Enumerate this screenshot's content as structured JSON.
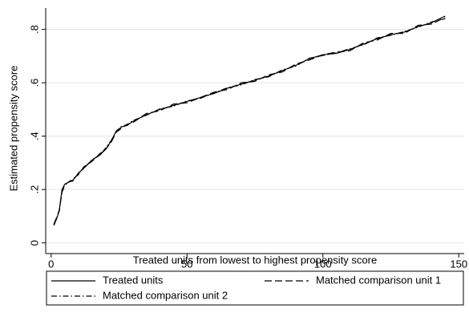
{
  "chart_data": {
    "type": "line",
    "x_label": "Treated units from lowest to highest propensity score",
    "y_label": "Estimated propensity score",
    "x": [
      1,
      2,
      3,
      4,
      5,
      6,
      8,
      10,
      12,
      15,
      18,
      20,
      22,
      24,
      26,
      28,
      30,
      35,
      40,
      45,
      50,
      55,
      60,
      65,
      70,
      75,
      80,
      85,
      90,
      95,
      100,
      105,
      110,
      115,
      120,
      125,
      130,
      135,
      140,
      145
    ],
    "series": [
      {
        "name": "Treated units",
        "color": "#000000",
        "style": "solid",
        "values": [
          0.065,
          0.09,
          0.12,
          0.2,
          0.22,
          0.225,
          0.235,
          0.26,
          0.28,
          0.31,
          0.33,
          0.35,
          0.38,
          0.42,
          0.435,
          0.44,
          0.455,
          0.48,
          0.5,
          0.515,
          0.53,
          0.545,
          0.56,
          0.58,
          0.595,
          0.61,
          0.625,
          0.645,
          0.665,
          0.69,
          0.705,
          0.71,
          0.725,
          0.745,
          0.765,
          0.78,
          0.79,
          0.81,
          0.825,
          0.85
        ]
      },
      {
        "name": "Matched comparison unit 1",
        "color": "#000000",
        "style": "dash",
        "values": [
          0.07,
          0.095,
          0.12,
          0.19,
          0.215,
          0.225,
          0.24,
          0.255,
          0.285,
          0.305,
          0.335,
          0.35,
          0.375,
          0.415,
          0.43,
          0.445,
          0.45,
          0.485,
          0.495,
          0.52,
          0.525,
          0.545,
          0.565,
          0.575,
          0.6,
          0.605,
          0.63,
          0.64,
          0.67,
          0.685,
          0.705,
          0.715,
          0.72,
          0.75,
          0.76,
          0.785,
          0.785,
          0.815,
          0.82,
          0.845
        ]
      },
      {
        "name": "Matched comparison unit 2",
        "color": "#000000",
        "style": "dashdot",
        "values": [
          0.068,
          0.092,
          0.125,
          0.195,
          0.218,
          0.228,
          0.232,
          0.262,
          0.278,
          0.312,
          0.328,
          0.355,
          0.382,
          0.418,
          0.438,
          0.442,
          0.458,
          0.478,
          0.502,
          0.512,
          0.532,
          0.542,
          0.562,
          0.582,
          0.592,
          0.612,
          0.622,
          0.648,
          0.662,
          0.692,
          0.702,
          0.712,
          0.728,
          0.742,
          0.768,
          0.778,
          0.792,
          0.808,
          0.828,
          0.84
        ]
      }
    ],
    "xlim": [
      -2,
      152
    ],
    "xticks": [
      0,
      50,
      100,
      150
    ],
    "ylim": [
      -0.04,
      0.88
    ],
    "yticks": [
      0,
      {
        "value": 0.2,
        "label": ".2"
      },
      {
        "value": 0.4,
        "label": ".4"
      },
      {
        "value": 0.6,
        "label": ".6"
      },
      {
        "value": 0.8,
        "label": ".8"
      }
    ],
    "grid": true,
    "legend": "bottom"
  }
}
